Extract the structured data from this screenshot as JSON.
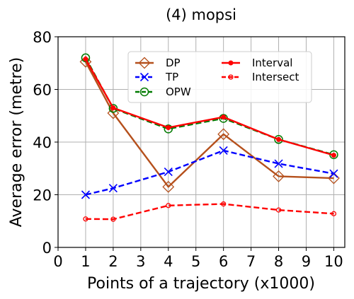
{
  "chart_data": {
    "type": "line",
    "title": "(4) mopsi",
    "xlabel": "Points of a trajectory (x1000)",
    "ylabel": "Average error (metre)",
    "xlim": [
      0,
      10.4
    ],
    "ylim": [
      0,
      80
    ],
    "xticks": [
      0,
      1,
      2,
      3,
      4,
      5,
      6,
      7,
      8,
      9,
      10
    ],
    "yticks": [
      0,
      20,
      40,
      60,
      80
    ],
    "grid": true,
    "legend_position": "upper-center",
    "legend_columns": 2,
    "x": [
      1,
      2,
      4,
      6,
      8,
      10
    ],
    "series": [
      {
        "name": "DP",
        "values": [
          70.5,
          51,
          23,
          43,
          27,
          26.3
        ],
        "color": "#b5501c",
        "linestyle": "solid",
        "marker": "diamond"
      },
      {
        "name": "TP",
        "values": [
          20,
          22.5,
          28.7,
          36.8,
          31.8,
          28
        ],
        "color": "#0000ff",
        "linestyle": "dashed",
        "marker": "x"
      },
      {
        "name": "OPW",
        "values": [
          72,
          52.8,
          45,
          49,
          41,
          35.2
        ],
        "color": "#007a00",
        "linestyle": "dashed",
        "marker": "circle-open"
      },
      {
        "name": "Interval",
        "values": [
          71.5,
          53,
          45.5,
          49.5,
          41,
          35
        ],
        "color": "#ff0000",
        "linestyle": "solid",
        "marker": "dot"
      },
      {
        "name": "Intersect",
        "values": [
          10.8,
          10.7,
          15.9,
          16.5,
          14.2,
          12.8
        ],
        "color": "#ff0000",
        "linestyle": "dashed",
        "marker": "circle-small"
      }
    ]
  }
}
